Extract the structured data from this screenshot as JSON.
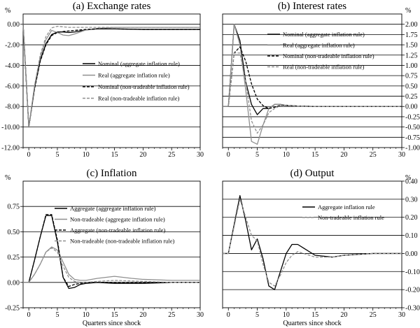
{
  "chart_data": [
    {
      "type": "line",
      "title": "(a) Exchange rates",
      "unit": "%",
      "axis_side": "left",
      "xlabel": "",
      "xlim": [
        -1,
        30
      ],
      "ylim": [
        -12,
        1
      ],
      "xticks": [
        0,
        5,
        10,
        15,
        20,
        25,
        30
      ],
      "yticks": [
        -12,
        -10,
        -8,
        -6,
        -4,
        -2,
        0
      ],
      "ytick_labels": [
        "-12.00",
        "-10.00",
        "-8.00",
        "-6.00",
        "-4.00",
        "-2.00",
        "0.00"
      ],
      "legend": "center-right",
      "series": [
        {
          "name": "Nominal (aggregate inflation rule)",
          "color": "#000000",
          "style": "solid",
          "width": 1.3,
          "x": [
            -1,
            0,
            1,
            2,
            3,
            4,
            5,
            6,
            7,
            8,
            9,
            10,
            12,
            15,
            20,
            25,
            30
          ],
          "y": [
            0,
            -10,
            -6.2,
            -3.5,
            -1.9,
            -1.0,
            -0.75,
            -0.75,
            -0.8,
            -0.75,
            -0.65,
            -0.55,
            -0.45,
            -0.45,
            -0.5,
            -0.5,
            -0.5
          ]
        },
        {
          "name": "Real (aggregate inflation rule)",
          "color": "#909090",
          "style": "solid",
          "width": 1.3,
          "x": [
            -1,
            0,
            1,
            2,
            3,
            4,
            5,
            6,
            7,
            8,
            9,
            10,
            12,
            15,
            20,
            25,
            30
          ],
          "y": [
            0,
            -10,
            -6.0,
            -3.2,
            -1.5,
            -0.6,
            -0.8,
            -1.05,
            -1.1,
            -0.95,
            -0.75,
            -0.55,
            -0.4,
            -0.3,
            -0.3,
            -0.3,
            -0.3
          ]
        },
        {
          "name": "Nominal (non-tradeable inflation rule)",
          "color": "#000000",
          "style": "dashed",
          "width": 1.3,
          "x": [
            -1,
            0,
            1,
            2,
            3,
            4,
            5,
            6,
            7,
            8,
            9,
            10,
            12,
            15,
            20,
            25,
            30
          ],
          "y": [
            0,
            -10,
            -6.3,
            -3.6,
            -2.0,
            -1.1,
            -0.8,
            -0.7,
            -0.65,
            -0.6,
            -0.55,
            -0.5,
            -0.45,
            -0.45,
            -0.5,
            -0.5,
            -0.5
          ]
        },
        {
          "name": "Real (non-tradeable inflation rule)",
          "color": "#909090",
          "style": "dashed",
          "width": 1.3,
          "x": [
            -1,
            0,
            1,
            2,
            3,
            4,
            5,
            6,
            7,
            8,
            9,
            10,
            12,
            15,
            20,
            25,
            30
          ],
          "y": [
            0,
            -10,
            -6.0,
            -3.0,
            -1.2,
            -0.35,
            -0.2,
            -0.25,
            -0.3,
            -0.3,
            -0.3,
            -0.3,
            -0.3,
            -0.3,
            -0.3,
            -0.3,
            -0.3
          ]
        }
      ]
    },
    {
      "type": "line",
      "title": "(b) Interest rates",
      "unit": "%",
      "axis_side": "right",
      "xlabel": "",
      "xlim": [
        -1,
        30
      ],
      "ylim": [
        -1,
        2.25
      ],
      "xticks": [
        0,
        5,
        10,
        15,
        20,
        25,
        30
      ],
      "yticks": [
        -1,
        -0.75,
        -0.5,
        -0.25,
        0,
        0.25,
        0.5,
        0.75,
        1,
        1.25,
        1.5,
        1.75,
        2
      ],
      "ytick_labels": [
        "-1.00",
        "-0.75",
        "-0.50",
        "-0.25",
        "0.00",
        "0.25",
        "0.50",
        "0.75",
        "1.00",
        "1.25",
        "1.50",
        "1.75",
        "2.00"
      ],
      "legend": "top-right",
      "series": [
        {
          "name": "Nominal (aggregate inflation rule)",
          "color": "#000000",
          "style": "solid",
          "width": 1.3,
          "x": [
            -1,
            0,
            1,
            2,
            3,
            4,
            5,
            6,
            7,
            8,
            9,
            10,
            12,
            15,
            20,
            30
          ],
          "y": [
            0,
            0,
            2.0,
            1.6,
            0.6,
            0.05,
            -0.2,
            -0.05,
            -0.05,
            0.05,
            0.05,
            0.02,
            0.01,
            0,
            0,
            0
          ]
        },
        {
          "name": "Real (aggregate inflation rule)",
          "color": "#909090",
          "style": "solid",
          "width": 1.3,
          "x": [
            -1,
            0,
            1,
            2,
            3,
            4,
            5,
            6,
            7,
            8,
            9,
            10,
            12,
            15,
            20,
            30
          ],
          "y": [
            0,
            0,
            2.0,
            1.5,
            0.4,
            -0.85,
            -0.92,
            -0.45,
            -0.05,
            0.05,
            0.05,
            0.02,
            0.01,
            0,
            0,
            0
          ]
        },
        {
          "name": "Nominal (non-tradeable inflation rule)",
          "color": "#000000",
          "style": "dashed",
          "width": 1.3,
          "x": [
            -1,
            0,
            1,
            2,
            3,
            4,
            5,
            6,
            7,
            8,
            9,
            10,
            12,
            15,
            20,
            30
          ],
          "y": [
            0,
            0,
            1.3,
            1.45,
            1.1,
            0.55,
            0.18,
            0.02,
            -0.05,
            -0.02,
            0.03,
            0.03,
            0.01,
            0,
            0,
            0
          ]
        },
        {
          "name": "Real (non-tradeable inflation rule)",
          "color": "#909090",
          "style": "dashed",
          "width": 1.3,
          "x": [
            -1,
            0,
            1,
            2,
            3,
            4,
            5,
            6,
            7,
            8,
            9,
            10,
            12,
            15,
            20,
            30
          ],
          "y": [
            0,
            0,
            1.3,
            1.3,
            0.6,
            -0.35,
            -0.65,
            -0.45,
            -0.15,
            -0.05,
            0.02,
            0.02,
            0.01,
            0,
            0,
            0
          ]
        }
      ]
    },
    {
      "type": "line",
      "title": "(c) Inflation",
      "unit": "%",
      "axis_side": "left",
      "xlabel": "Quarters since shock",
      "xlim": [
        -1,
        30
      ],
      "ylim": [
        -0.25,
        1
      ],
      "xticks": [
        0,
        5,
        10,
        15,
        20,
        25,
        30
      ],
      "yticks": [
        -0.25,
        0,
        0.25,
        0.5,
        0.75
      ],
      "ytick_labels": [
        "-0.25",
        "0.00",
        "0.25",
        "0.50",
        "0.75"
      ],
      "legend": "center-right",
      "series": [
        {
          "name": "Aggregate (aggregate inflation rule)",
          "color": "#000000",
          "style": "solid",
          "width": 1.3,
          "x": [
            -1,
            0,
            1,
            2,
            3,
            4,
            5,
            6,
            7,
            8,
            9,
            10,
            12,
            15,
            20,
            25,
            30
          ],
          "y": [
            0,
            0,
            0.22,
            0.45,
            0.66,
            0.66,
            0.4,
            0.05,
            -0.06,
            -0.05,
            -0.02,
            -0.01,
            0,
            -0.01,
            -0.01,
            0,
            0
          ]
        },
        {
          "name": "Non-tradeable (aggregate inflation rule)",
          "color": "#909090",
          "style": "solid",
          "width": 1.3,
          "x": [
            -1,
            0,
            1,
            2,
            3,
            4,
            5,
            6,
            7,
            8,
            9,
            10,
            12,
            15,
            18,
            20,
            25,
            30
          ],
          "y": [
            0,
            0,
            0.08,
            0.18,
            0.3,
            0.35,
            0.32,
            0.2,
            0.08,
            0.03,
            0.02,
            0.02,
            0.04,
            0.06,
            0.04,
            0.03,
            0.02,
            0.02
          ]
        },
        {
          "name": "Aggregate (non-tradeable inflation rule)",
          "color": "#000000",
          "style": "dashed",
          "width": 1.3,
          "x": [
            -1,
            0,
            1,
            2,
            3,
            4,
            5,
            6,
            7,
            8,
            9,
            10,
            12,
            15,
            20,
            25,
            30
          ],
          "y": [
            0,
            0,
            0.22,
            0.45,
            0.67,
            0.67,
            0.42,
            0.05,
            -0.04,
            -0.02,
            -0.01,
            0,
            0,
            0,
            0,
            0,
            0
          ]
        },
        {
          "name": "Non-tradeable (non-tradeable inflation rule)",
          "color": "#909090",
          "style": "dashed",
          "width": 1.3,
          "x": [
            -1,
            0,
            1,
            2,
            3,
            4,
            5,
            6,
            7,
            8,
            9,
            10,
            12,
            15,
            20,
            25,
            30
          ],
          "y": [
            0,
            0,
            0.08,
            0.18,
            0.3,
            0.34,
            0.3,
            0.16,
            0.05,
            0.01,
            0,
            0,
            0.01,
            0.02,
            0.01,
            0,
            0
          ]
        }
      ]
    },
    {
      "type": "line",
      "title": "(d) Output",
      "unit": "%",
      "axis_side": "right",
      "xlabel": "Quarters since shock",
      "xlim": [
        -1,
        30
      ],
      "ylim": [
        -0.3,
        0.4
      ],
      "xticks": [
        0,
        5,
        10,
        15,
        20,
        25,
        30
      ],
      "yticks": [
        -0.3,
        -0.2,
        -0.1,
        0,
        0.1,
        0.2,
        0.3,
        0.4
      ],
      "ytick_labels": [
        "-0.30",
        "-0.20",
        "-0.10",
        "0.00",
        "0.10",
        "0.20",
        "0.30",
        "0.40"
      ],
      "legend": "top-right",
      "series": [
        {
          "name": "Aggregate inflation rule",
          "color": "#000000",
          "style": "solid",
          "width": 1.3,
          "x": [
            -1,
            0,
            1,
            2,
            3,
            4,
            5,
            6,
            7,
            8,
            9,
            10,
            11,
            12,
            13,
            15,
            18,
            20,
            25,
            30
          ],
          "y": [
            0,
            0,
            0.16,
            0.32,
            0.18,
            0.02,
            0.08,
            -0.03,
            -0.18,
            -0.2,
            -0.1,
            0,
            0.05,
            0.05,
            0.03,
            -0.01,
            -0.02,
            -0.01,
            0,
            0
          ]
        },
        {
          "name": "Non-tradeable inflation rule",
          "color": "#909090",
          "style": "dashed",
          "width": 1.3,
          "x": [
            -1,
            0,
            1,
            2,
            3,
            4,
            5,
            6,
            7,
            8,
            9,
            10,
            11,
            12,
            13,
            15,
            18,
            20,
            25,
            30
          ],
          "y": [
            0,
            0,
            0.15,
            0.3,
            0.2,
            0.1,
            0.07,
            -0.06,
            -0.16,
            -0.18,
            -0.12,
            -0.05,
            -0.01,
            0.01,
            0,
            -0.02,
            -0.02,
            -0.01,
            0,
            0
          ]
        }
      ]
    }
  ]
}
